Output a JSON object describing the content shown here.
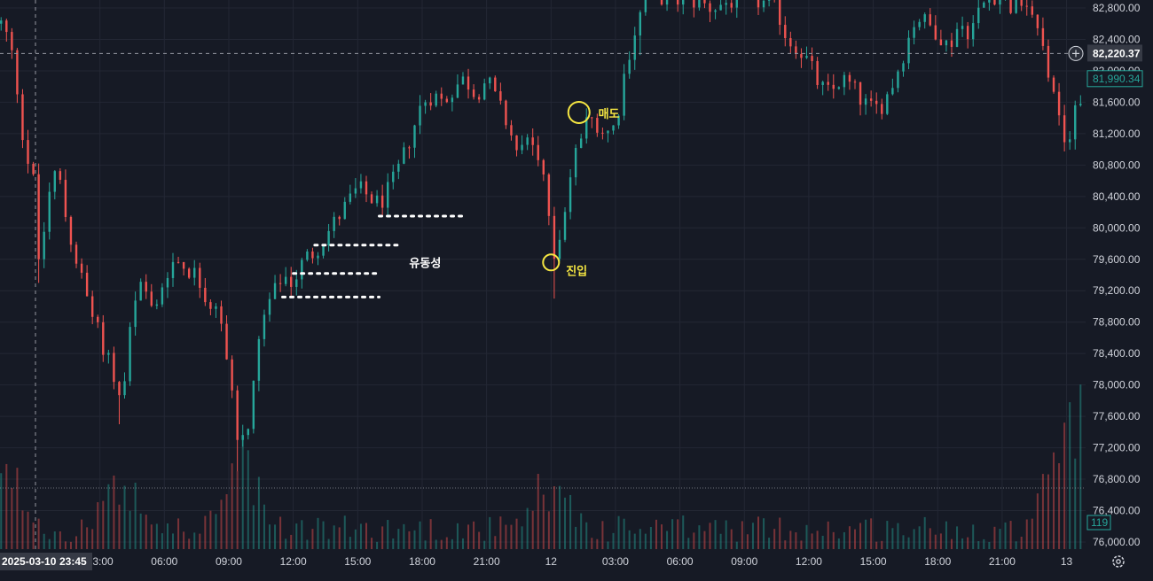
{
  "colors": {
    "background": "#161a25",
    "grid": "#232734",
    "up": "#26a69a",
    "down": "#ef5350",
    "annotation": "#f5e642",
    "text": "#d1d4dc",
    "crosshair": "#9598a1"
  },
  "chart_data": {
    "type": "candlestick",
    "ylim": [
      76000,
      83000
    ],
    "y_ticks": [
      "76,000.00",
      "76,400.00",
      "76,800.00",
      "77,200.00",
      "77,600.00",
      "78,000.00",
      "78,400.00",
      "78,800.00",
      "79,200.00",
      "79,600.00",
      "80,000.00",
      "80,400.00",
      "80,800.00",
      "81,200.00",
      "81,600.00",
      "82,000.00",
      "82,400.00",
      "82,800.00"
    ],
    "y_tick_values": [
      76000,
      76400,
      76800,
      77200,
      77600,
      78000,
      78400,
      78800,
      79200,
      79600,
      80000,
      80400,
      80800,
      81200,
      81600,
      82000,
      82400,
      82800
    ],
    "x_ticks": [
      "03:00",
      "06:00",
      "09:00",
      "12:00",
      "15:00",
      "18:00",
      "21:00",
      "12",
      "03:00",
      "06:00",
      "09:00",
      "12:00",
      "15:00",
      "18:00",
      "21:00",
      "13"
    ],
    "x_tick_hours": [
      3,
      6,
      9,
      12,
      15,
      18,
      21,
      24,
      27,
      30,
      33,
      36,
      39,
      42,
      45,
      48
    ],
    "crosshair": {
      "date_label": "2025-03-10",
      "time_label": "23:45",
      "hour": 0,
      "price": 82220.37,
      "price_label": "82,220.37"
    },
    "last_price": {
      "value": 81990.34,
      "label": "81,990.34"
    },
    "volume_label": "119",
    "close_path": [
      [
        -1.5,
        82600
      ],
      [
        -1.0,
        82100
      ],
      [
        -0.5,
        81000
      ],
      [
        0.0,
        80500
      ],
      [
        0.2,
        79300
      ],
      [
        0.5,
        80300
      ],
      [
        1.0,
        80800
      ],
      [
        1.5,
        80000
      ],
      [
        2.0,
        79500
      ],
      [
        2.5,
        79000
      ],
      [
        3.0,
        78600
      ],
      [
        3.5,
        78300
      ],
      [
        4.0,
        77700
      ],
      [
        4.5,
        78900
      ],
      [
        5.0,
        79300
      ],
      [
        5.5,
        78800
      ],
      [
        6.0,
        79400
      ],
      [
        6.5,
        79600
      ],
      [
        7.0,
        79500
      ],
      [
        7.5,
        79400
      ],
      [
        8.0,
        79100
      ],
      [
        8.5,
        78900
      ],
      [
        9.0,
        78300
      ],
      [
        9.5,
        77100
      ],
      [
        10.0,
        77600
      ],
      [
        10.5,
        78700
      ],
      [
        11.0,
        79100
      ],
      [
        11.5,
        79400
      ],
      [
        12.0,
        79300
      ],
      [
        12.5,
        79600
      ],
      [
        13.0,
        79700
      ],
      [
        14.0,
        80100
      ],
      [
        14.5,
        80300
      ],
      [
        15.0,
        80500
      ],
      [
        15.5,
        80400
      ],
      [
        16.0,
        80300
      ],
      [
        16.5,
        80500
      ],
      [
        17.0,
        80800
      ],
      [
        17.5,
        81200
      ],
      [
        18.0,
        81600
      ],
      [
        18.5,
        81700
      ],
      [
        19.0,
        81600
      ],
      [
        19.5,
        81800
      ],
      [
        20.0,
        81900
      ],
      [
        20.5,
        81700
      ],
      [
        21.0,
        81900
      ],
      [
        21.5,
        81600
      ],
      [
        22.0,
        81300
      ],
      [
        22.5,
        80900
      ],
      [
        23.0,
        81200
      ],
      [
        23.5,
        80800
      ],
      [
        24.0,
        80000
      ],
      [
        24.2,
        79600
      ],
      [
        24.6,
        80200
      ],
      [
        25.0,
        80800
      ],
      [
        25.5,
        81300
      ],
      [
        26.0,
        81400
      ],
      [
        26.5,
        81200
      ],
      [
        27.0,
        81300
      ],
      [
        27.5,
        82100
      ],
      [
        28.0,
        82600
      ],
      [
        28.5,
        83000
      ],
      [
        29.5,
        82900
      ],
      [
        30.5,
        82900
      ],
      [
        31.5,
        82800
      ],
      [
        32.5,
        82900
      ],
      [
        33.5,
        82900
      ],
      [
        34.5,
        82800
      ],
      [
        35.0,
        82400
      ],
      [
        35.5,
        82300
      ],
      [
        36.0,
        82100
      ],
      [
        36.5,
        81800
      ],
      [
        37.0,
        81700
      ],
      [
        37.5,
        81900
      ],
      [
        38.0,
        81800
      ],
      [
        38.5,
        81600
      ],
      [
        39.0,
        81500
      ],
      [
        39.5,
        81600
      ],
      [
        40.0,
        81900
      ],
      [
        40.5,
        82300
      ],
      [
        41.0,
        82700
      ],
      [
        41.5,
        82600
      ],
      [
        42.0,
        82500
      ],
      [
        42.5,
        82300
      ],
      [
        43.0,
        82600
      ],
      [
        43.5,
        82500
      ],
      [
        44.0,
        82800
      ],
      [
        44.5,
        83000
      ],
      [
        45.0,
        82900
      ],
      [
        45.5,
        82800
      ],
      [
        46.0,
        82900
      ],
      [
        46.5,
        82700
      ],
      [
        47.0,
        82200
      ],
      [
        47.5,
        81500
      ],
      [
        48.0,
        80900
      ],
      [
        48.5,
        81700
      ]
    ],
    "spikes": [
      [
        0.2,
        79300
      ],
      [
        4.0,
        77500
      ],
      [
        9.5,
        76900
      ],
      [
        24.1,
        79100
      ],
      [
        28.0,
        82200
      ]
    ],
    "volume_hotspots": [
      [
        -1.2,
        0.55
      ],
      [
        4.0,
        0.6
      ],
      [
        9.5,
        0.85
      ],
      [
        24.0,
        0.55
      ],
      [
        47.5,
        0.9
      ],
      [
        48.5,
        1.0
      ]
    ],
    "annotations": [
      {
        "text": "유동성",
        "color": "white"
      },
      {
        "text": "진입",
        "color": "yellow"
      },
      {
        "text": "매도",
        "color": "yellow"
      }
    ],
    "liquidity_levels": [
      {
        "price": 80150,
        "from_hour": 16.0,
        "to_hour": 20.0
      },
      {
        "price": 79780,
        "from_hour": 13.0,
        "to_hour": 17.0
      },
      {
        "price": 79420,
        "from_hour": 12.0,
        "to_hour": 16.0
      },
      {
        "price": 79120,
        "from_hour": 11.5,
        "to_hour": 16.0
      }
    ],
    "markers": [
      {
        "label": "진입",
        "hour": 24.0,
        "price": 79560
      },
      {
        "label": "매도",
        "hour": 25.3,
        "price": 81470
      }
    ]
  }
}
